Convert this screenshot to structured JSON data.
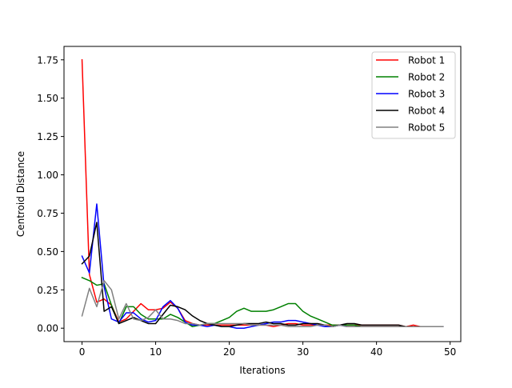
{
  "chart_data": {
    "type": "line",
    "title": "",
    "xlabel": "Iterations",
    "ylabel": "Centroid Distance",
    "xlim": [
      -2.45,
      51.45
    ],
    "ylim": [
      -0.0875,
      1.8375
    ],
    "xticks": [
      0,
      10,
      20,
      30,
      40,
      50
    ],
    "xtick_labels": [
      "0",
      "10",
      "20",
      "30",
      "40",
      "50"
    ],
    "yticks": [
      0.0,
      0.25,
      0.5,
      0.75,
      1.0,
      1.25,
      1.5,
      1.75
    ],
    "ytick_labels": [
      "0.00",
      "0.25",
      "0.50",
      "0.75",
      "1.00",
      "1.25",
      "1.50",
      "1.75"
    ],
    "grid": false,
    "legend_position": "upper-right",
    "x": [
      0,
      1,
      2,
      3,
      4,
      5,
      6,
      7,
      8,
      9,
      10,
      11,
      12,
      13,
      14,
      15,
      16,
      17,
      18,
      19,
      20,
      21,
      22,
      23,
      24,
      25,
      26,
      27,
      28,
      29,
      30,
      31,
      32,
      33,
      34,
      35,
      36,
      37,
      38,
      39,
      40,
      41,
      42,
      43,
      44,
      45,
      46,
      47,
      48,
      49
    ],
    "series": [
      {
        "name": "Robot 1",
        "color": "#ff0000",
        "values": [
          1.75,
          0.35,
          0.17,
          0.19,
          0.15,
          0.04,
          0.06,
          0.11,
          0.16,
          0.12,
          0.12,
          0.13,
          0.17,
          0.13,
          0.05,
          0.03,
          0.02,
          0.02,
          0.02,
          0.02,
          0.02,
          0.02,
          0.02,
          0.02,
          0.02,
          0.02,
          0.01,
          0.02,
          0.03,
          0.03,
          0.02,
          0.02,
          0.02,
          0.02,
          0.02,
          0.02,
          0.02,
          0.02,
          0.02,
          0.02,
          0.02,
          0.02,
          0.02,
          0.02,
          0.01,
          0.02,
          0.01,
          0.01,
          0.01,
          0.01
        ]
      },
      {
        "name": "Robot 2",
        "color": "#008000",
        "values": [
          0.33,
          0.31,
          0.28,
          0.29,
          0.15,
          0.03,
          0.14,
          0.14,
          0.09,
          0.06,
          0.06,
          0.06,
          0.09,
          0.07,
          0.04,
          0.01,
          0.02,
          0.03,
          0.03,
          0.05,
          0.07,
          0.11,
          0.13,
          0.11,
          0.11,
          0.11,
          0.12,
          0.14,
          0.16,
          0.16,
          0.11,
          0.08,
          0.06,
          0.04,
          0.02,
          0.02,
          0.02,
          0.02,
          0.01,
          0.01,
          0.01,
          0.01,
          0.01,
          0.01,
          0.01,
          0.01,
          0.01,
          0.01,
          0.01,
          0.01
        ]
      },
      {
        "name": "Robot 3",
        "color": "#0000ff",
        "values": [
          0.47,
          0.36,
          0.81,
          0.27,
          0.06,
          0.04,
          0.1,
          0.1,
          0.06,
          0.04,
          0.05,
          0.14,
          0.18,
          0.13,
          0.04,
          0.02,
          0.02,
          0.01,
          0.02,
          0.01,
          0.01,
          0.0,
          0.0,
          0.01,
          0.02,
          0.03,
          0.04,
          0.04,
          0.05,
          0.05,
          0.04,
          0.03,
          0.02,
          0.01,
          0.01,
          0.02,
          0.01,
          0.01,
          0.01,
          0.01,
          0.01,
          0.01,
          0.01,
          0.01,
          0.01,
          0.01,
          0.01,
          0.01,
          0.01,
          0.01
        ]
      },
      {
        "name": "Robot 4",
        "color": "#000000",
        "values": [
          0.42,
          0.47,
          0.69,
          0.11,
          0.14,
          0.03,
          0.05,
          0.07,
          0.05,
          0.03,
          0.03,
          0.09,
          0.15,
          0.14,
          0.12,
          0.08,
          0.05,
          0.03,
          0.02,
          0.01,
          0.01,
          0.02,
          0.03,
          0.03,
          0.03,
          0.04,
          0.03,
          0.03,
          0.02,
          0.02,
          0.03,
          0.03,
          0.03,
          0.02,
          0.01,
          0.02,
          0.03,
          0.03,
          0.02,
          0.02,
          0.02,
          0.02,
          0.02,
          0.02,
          0.01,
          0.01,
          0.01,
          0.01,
          0.01,
          0.01
        ]
      },
      {
        "name": "Robot 5",
        "color": "#808080",
        "values": [
          0.08,
          0.26,
          0.14,
          0.31,
          0.25,
          0.06,
          0.16,
          0.06,
          0.05,
          0.07,
          0.12,
          0.06,
          0.06,
          0.05,
          0.03,
          0.03,
          0.02,
          0.03,
          0.03,
          0.03,
          0.03,
          0.03,
          0.03,
          0.02,
          0.02,
          0.02,
          0.02,
          0.02,
          0.01,
          0.01,
          0.01,
          0.01,
          0.02,
          0.02,
          0.01,
          0.02,
          0.01,
          0.01,
          0.01,
          0.01,
          0.01,
          0.01,
          0.01,
          0.01,
          0.01,
          0.01,
          0.01,
          0.01,
          0.01,
          0.01
        ]
      }
    ]
  }
}
